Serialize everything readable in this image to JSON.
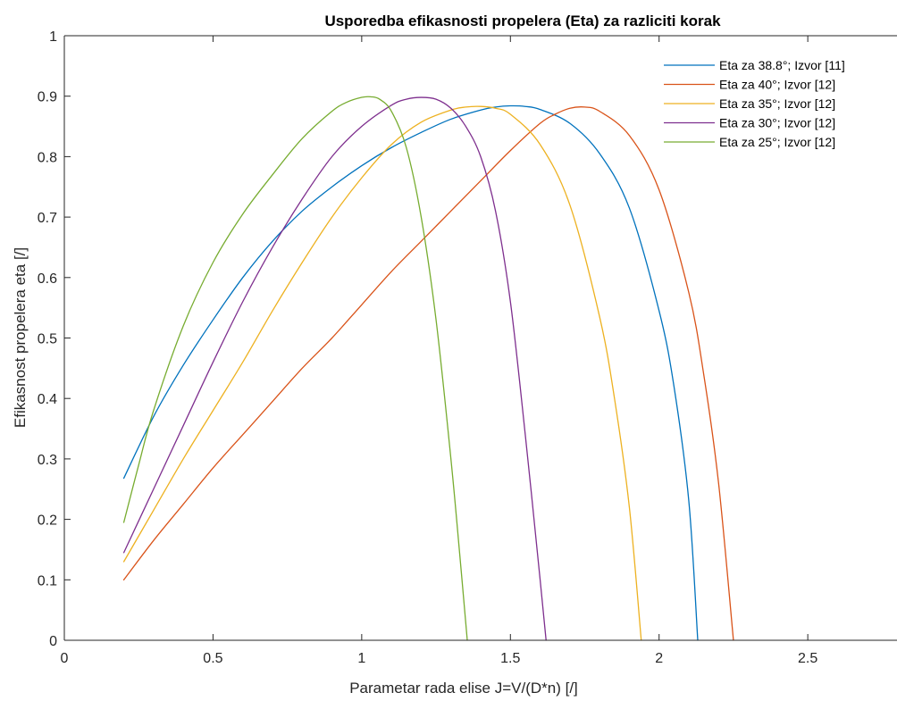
{
  "chart_data": {
    "type": "line",
    "title": "Usporedba efikasnosti propelera (Eta) za razliciti korak",
    "xlabel": "Parametar rada elise J=V/(D*n) [/]",
    "ylabel": "Efikasnost propelera eta [/]",
    "xlim": [
      0,
      2.8
    ],
    "ylim": [
      0,
      1
    ],
    "xticks": [
      0,
      0.5,
      1,
      1.5,
      2,
      2.5
    ],
    "yticks": [
      0,
      0.1,
      0.2,
      0.3,
      0.4,
      0.5,
      0.6,
      0.7,
      0.8,
      0.9,
      1
    ],
    "xtick_labels": [
      "0",
      "0.5",
      "1",
      "1.5",
      "2",
      "2.5"
    ],
    "ytick_labels": [
      "0",
      "0.1",
      "0.2",
      "0.3",
      "0.4",
      "0.5",
      "0.6",
      "0.7",
      "0.8",
      "0.9",
      "1"
    ],
    "grid": false,
    "legend_position": "top-right",
    "series": [
      {
        "name": "Eta za 38.8°; Izvor [11]",
        "color": "#0072BD",
        "x": [
          0.2,
          0.3,
          0.4,
          0.5,
          0.6,
          0.7,
          0.8,
          0.9,
          1.0,
          1.1,
          1.2,
          1.3,
          1.4,
          1.45,
          1.5,
          1.55,
          1.6,
          1.7,
          1.8,
          1.9,
          2.0,
          2.05,
          2.1,
          2.13
        ],
        "y": [
          0.268,
          0.37,
          0.455,
          0.53,
          0.6,
          0.66,
          0.71,
          0.75,
          0.785,
          0.815,
          0.84,
          0.862,
          0.877,
          0.882,
          0.884,
          0.883,
          0.878,
          0.855,
          0.805,
          0.715,
          0.545,
          0.42,
          0.23,
          0.0
        ]
      },
      {
        "name": "Eta za 40°; Izvor [12]",
        "color": "#D95319",
        "x": [
          0.2,
          0.3,
          0.4,
          0.5,
          0.6,
          0.7,
          0.8,
          0.9,
          1.0,
          1.1,
          1.2,
          1.3,
          1.4,
          1.5,
          1.6,
          1.65,
          1.7,
          1.75,
          1.8,
          1.9,
          2.0,
          2.1,
          2.15,
          2.2,
          2.25
        ],
        "y": [
          0.1,
          0.165,
          0.225,
          0.285,
          0.34,
          0.395,
          0.45,
          0.5,
          0.555,
          0.61,
          0.66,
          0.71,
          0.76,
          0.81,
          0.855,
          0.87,
          0.88,
          0.882,
          0.875,
          0.835,
          0.745,
          0.575,
          0.44,
          0.26,
          0.0
        ]
      },
      {
        "name": "Eta za 35°; Izvor [12]",
        "color": "#EDB120",
        "x": [
          0.2,
          0.3,
          0.4,
          0.5,
          0.6,
          0.7,
          0.8,
          0.9,
          1.0,
          1.1,
          1.2,
          1.3,
          1.35,
          1.4,
          1.45,
          1.5,
          1.6,
          1.7,
          1.8,
          1.85,
          1.9,
          1.94
        ],
        "y": [
          0.13,
          0.215,
          0.3,
          0.38,
          0.46,
          0.545,
          0.625,
          0.7,
          0.765,
          0.82,
          0.857,
          0.877,
          0.882,
          0.883,
          0.88,
          0.87,
          0.82,
          0.72,
          0.535,
          0.4,
          0.22,
          0.0
        ]
      },
      {
        "name": "Eta za 30°; Izvor [12]",
        "color": "#7E2F8E",
        "x": [
          0.2,
          0.3,
          0.4,
          0.5,
          0.6,
          0.7,
          0.8,
          0.9,
          1.0,
          1.1,
          1.15,
          1.2,
          1.25,
          1.3,
          1.35,
          1.4,
          1.45,
          1.5,
          1.55,
          1.6,
          1.62
        ],
        "y": [
          0.145,
          0.25,
          0.355,
          0.46,
          0.56,
          0.65,
          0.73,
          0.8,
          0.85,
          0.885,
          0.895,
          0.898,
          0.895,
          0.88,
          0.85,
          0.8,
          0.71,
          0.56,
          0.34,
          0.1,
          0.0
        ]
      },
      {
        "name": "Eta za 25°; Izvor [12]",
        "color": "#77AC30",
        "x": [
          0.2,
          0.25,
          0.3,
          0.4,
          0.5,
          0.6,
          0.7,
          0.8,
          0.9,
          0.95,
          1.0,
          1.03,
          1.06,
          1.1,
          1.15,
          1.2,
          1.25,
          1.3,
          1.33,
          1.355
        ],
        "y": [
          0.195,
          0.29,
          0.38,
          0.52,
          0.625,
          0.705,
          0.77,
          0.83,
          0.875,
          0.89,
          0.898,
          0.899,
          0.895,
          0.875,
          0.815,
          0.7,
          0.53,
          0.3,
          0.14,
          0.0
        ]
      }
    ]
  }
}
